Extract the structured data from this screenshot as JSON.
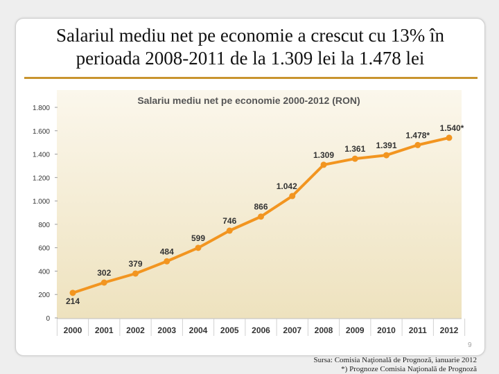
{
  "slide": {
    "title_line1": "Salariul mediu net pe economie a crescut cu 13% în",
    "title_line2": "perioada 2008-2011 de la 1.309 lei la 1.478 lei",
    "page_number": "9"
  },
  "source": {
    "line1": "Sursa: Comisia Naţională de Prognoză, ianuarie 2012",
    "line2": "*) Prognoze Comisia Naţională de Prognoză"
  },
  "colors": {
    "line": "#f29520",
    "plot_bg_top": "#fbf7ec",
    "plot_bg_bottom": "#eee2be",
    "title_rule": "#c8942e"
  },
  "chart_data": {
    "type": "line",
    "title": "Salariu mediu net pe economie 2000-2012 (RON)",
    "categories": [
      "2000",
      "2001",
      "2002",
      "2003",
      "2004",
      "2005",
      "2006",
      "2007",
      "2008",
      "2009",
      "2010",
      "2011",
      "2012"
    ],
    "values": [
      214,
      302,
      379,
      484,
      599,
      746,
      866,
      1042,
      1309,
      1361,
      1391,
      1478,
      1540
    ],
    "data_labels": [
      "214",
      "302",
      "379",
      "484",
      "599",
      "746",
      "866",
      "1.042",
      "1.309",
      "1.361",
      "1.391",
      "1.478*",
      "1.540*"
    ],
    "ylim": [
      0,
      1800
    ],
    "yticks": [
      0,
      200,
      400,
      600,
      800,
      1000,
      1200,
      1400,
      1600,
      1800
    ],
    "ytick_labels": [
      "0",
      "200",
      "400",
      "600",
      "800",
      "1.000",
      "1.200",
      "1.400",
      "1.600",
      "1.800"
    ],
    "grid": false,
    "legend": "none"
  }
}
